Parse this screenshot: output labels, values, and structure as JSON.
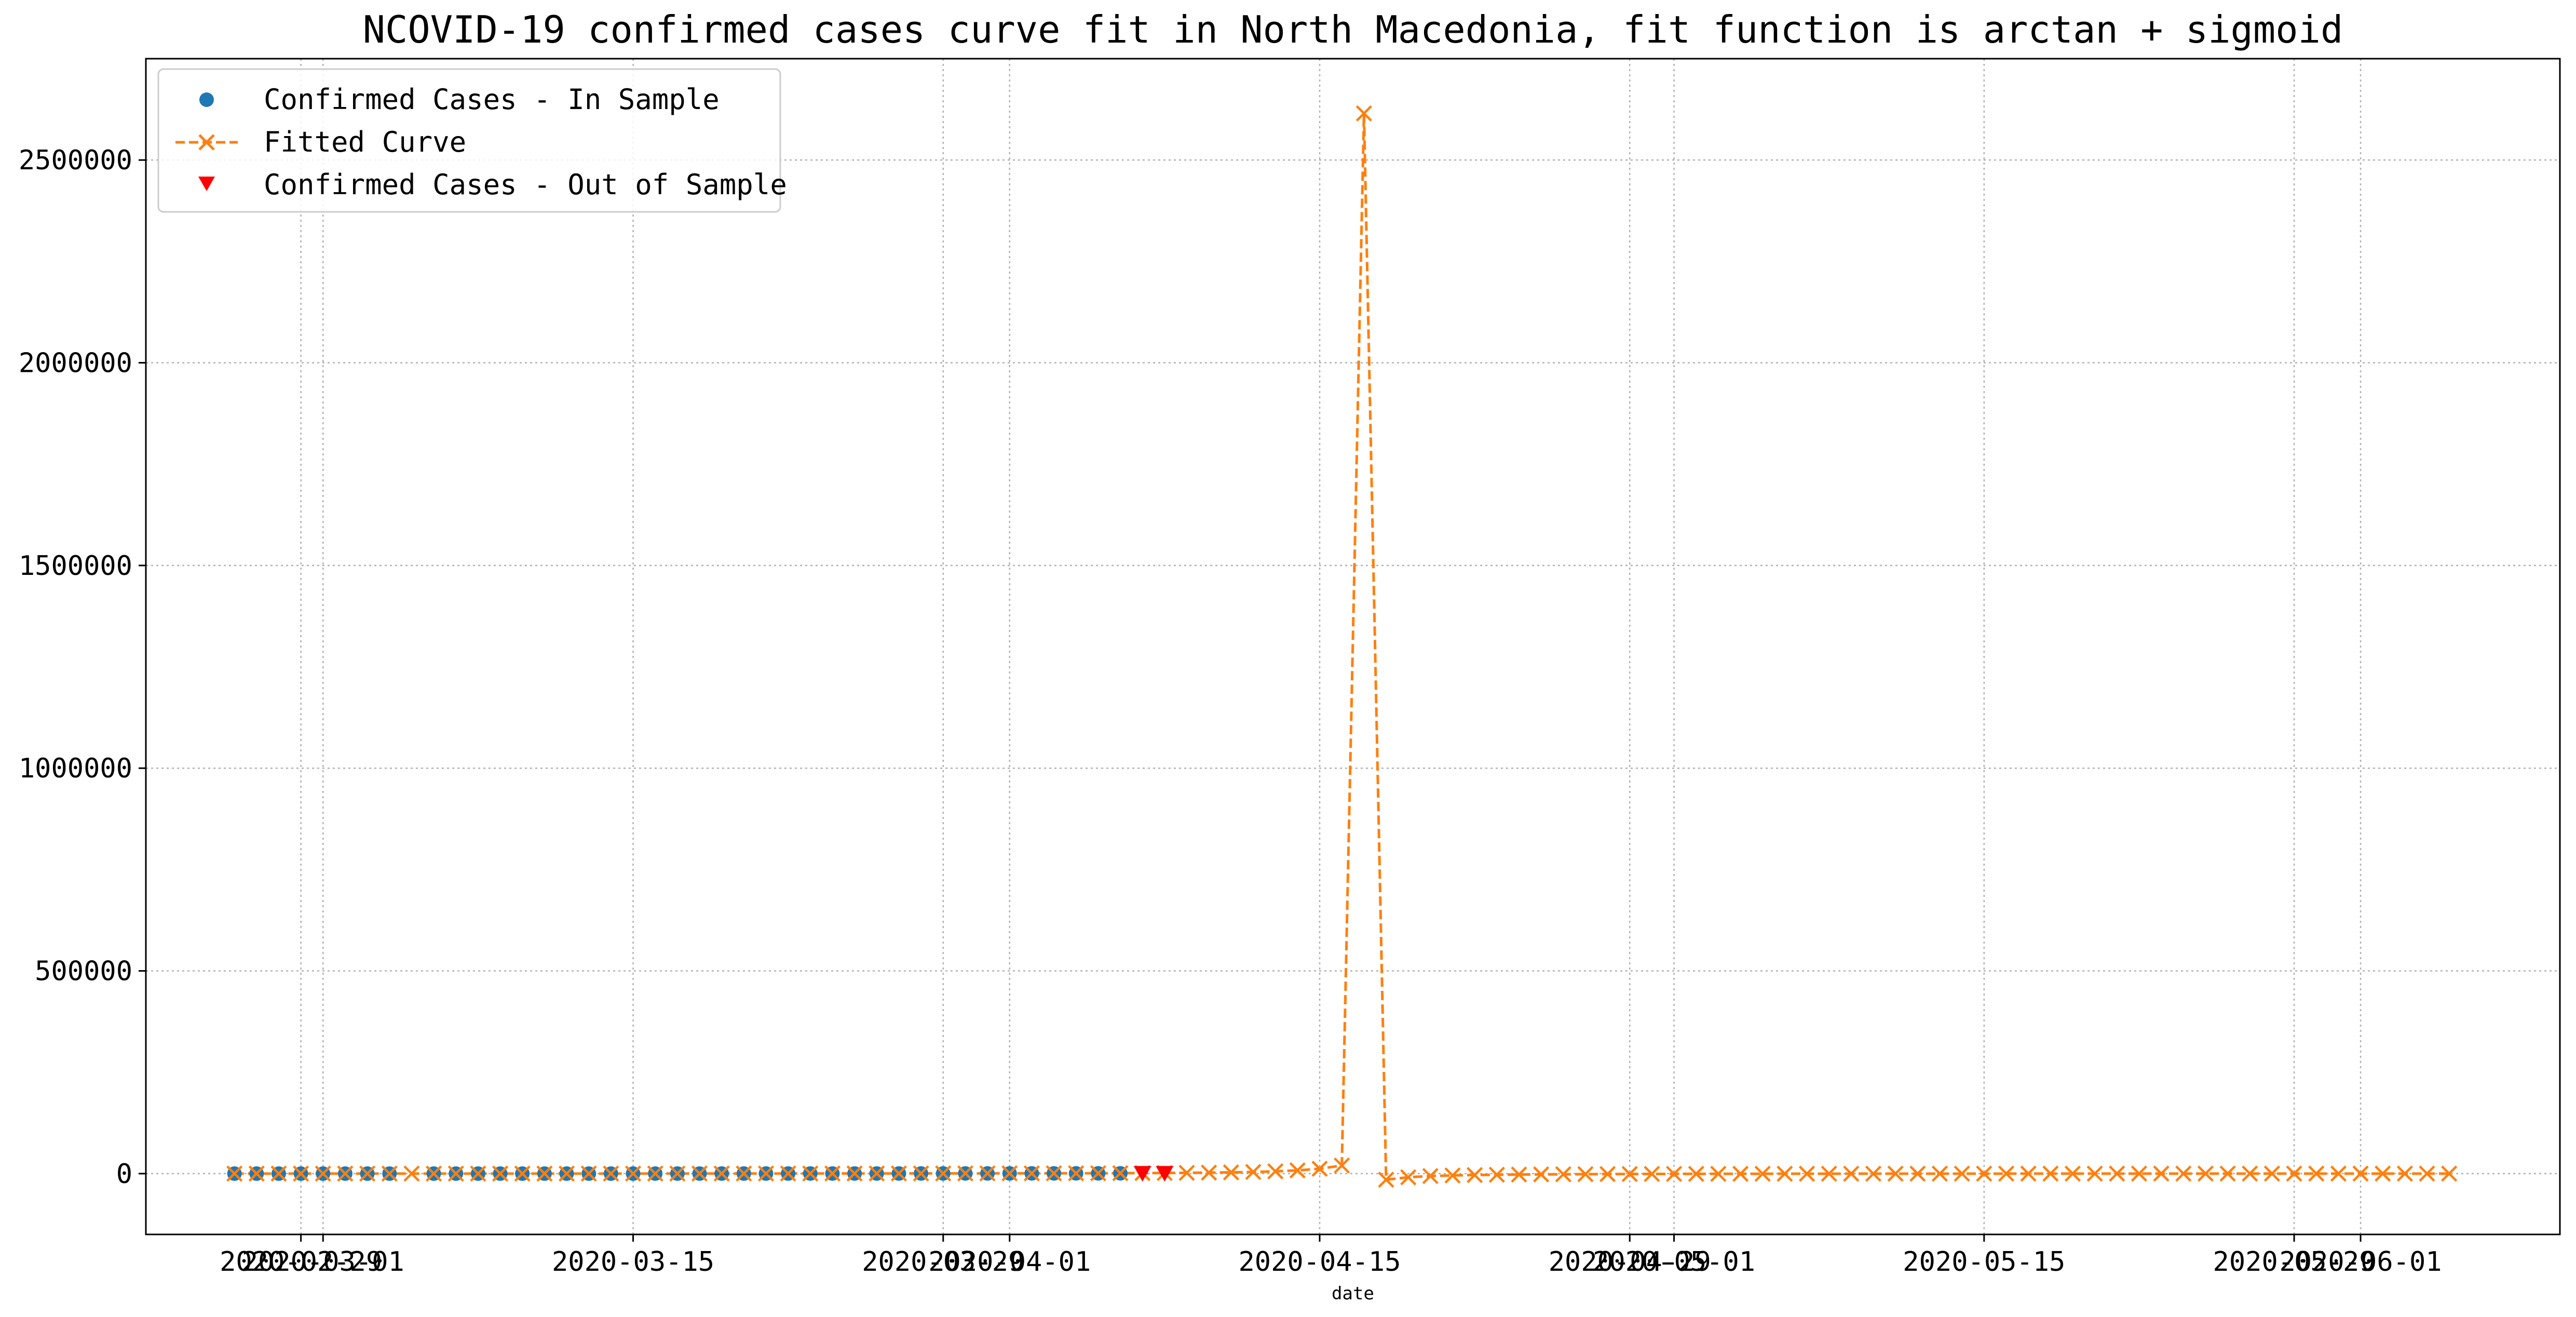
{
  "chart_data": {
    "type": "line",
    "title": "NCOVID-19 confirmed cases curve fit in North Macedonia, fit function is arctan + sigmoid",
    "xlabel": "date",
    "ylabel": "",
    "xlim": [
      "2020-02-22",
      "2020-06-10"
    ],
    "ylim": [
      -150000,
      2750000
    ],
    "grid": true,
    "legend_position": "top-left",
    "x_ticks": [
      "2020-02-29",
      "2020-03-01",
      "2020-03-15",
      "2020-03-29",
      "2020-04-01",
      "2020-04-15",
      "2020-04-29",
      "2020-05-01",
      "2020-05-15",
      "2020-05-29",
      "2020-06-01"
    ],
    "y_ticks": [
      0,
      500000,
      1000000,
      1500000,
      2000000,
      2500000
    ],
    "y_tick_labels": [
      "0",
      "500000",
      "1000000",
      "1500000",
      "2000000",
      "2500000"
    ],
    "series": [
      {
        "name": "Confirmed Cases - In Sample",
        "style": "markers",
        "marker": "circle",
        "color": "#1f77b4",
        "x": [
          "2020-02-26",
          "2020-02-27",
          "2020-02-28",
          "2020-02-29",
          "2020-03-01",
          "2020-03-02",
          "2020-03-03",
          "2020-03-04",
          "2020-03-06",
          "2020-03-07",
          "2020-03-08",
          "2020-03-09",
          "2020-03-10",
          "2020-03-11",
          "2020-03-12",
          "2020-03-13",
          "2020-03-14",
          "2020-03-15",
          "2020-03-16",
          "2020-03-17",
          "2020-03-18",
          "2020-03-19",
          "2020-03-20",
          "2020-03-21",
          "2020-03-22",
          "2020-03-23",
          "2020-03-24",
          "2020-03-25",
          "2020-03-26",
          "2020-03-27",
          "2020-03-28",
          "2020-03-29",
          "2020-03-30",
          "2020-03-31",
          "2020-04-01",
          "2020-04-02",
          "2020-04-03",
          "2020-04-04",
          "2020-04-05",
          "2020-04-06"
        ],
        "y": [
          1,
          1,
          1,
          1,
          1,
          1,
          1,
          1,
          3,
          3,
          3,
          3,
          7,
          7,
          9,
          14,
          14,
          19,
          31,
          48,
          85,
          114,
          136,
          148,
          177,
          201,
          219,
          241,
          259,
          285,
          329,
          354,
          384,
          430,
          483,
          555,
          570,
          599,
          617,
          711
        ]
      },
      {
        "name": "Fitted Curve",
        "style": "dashed-line-with-x-markers",
        "marker": "x",
        "color": "#ff7f0e",
        "x": [
          "2020-02-26",
          "2020-02-27",
          "2020-02-28",
          "2020-02-29",
          "2020-03-01",
          "2020-03-02",
          "2020-03-03",
          "2020-03-04",
          "2020-03-05",
          "2020-03-06",
          "2020-03-07",
          "2020-03-08",
          "2020-03-09",
          "2020-03-10",
          "2020-03-11",
          "2020-03-12",
          "2020-03-13",
          "2020-03-14",
          "2020-03-15",
          "2020-03-16",
          "2020-03-17",
          "2020-03-18",
          "2020-03-19",
          "2020-03-20",
          "2020-03-21",
          "2020-03-22",
          "2020-03-23",
          "2020-03-24",
          "2020-03-25",
          "2020-03-26",
          "2020-03-27",
          "2020-03-28",
          "2020-03-29",
          "2020-03-30",
          "2020-03-31",
          "2020-04-01",
          "2020-04-02",
          "2020-04-03",
          "2020-04-04",
          "2020-04-05",
          "2020-04-06",
          "2020-04-07",
          "2020-04-08",
          "2020-04-09",
          "2020-04-10",
          "2020-04-11",
          "2020-04-12",
          "2020-04-13",
          "2020-04-14",
          "2020-04-15",
          "2020-04-16",
          "2020-04-17",
          "2020-04-18",
          "2020-04-19",
          "2020-04-20",
          "2020-04-21",
          "2020-04-22",
          "2020-04-23",
          "2020-04-24",
          "2020-04-25",
          "2020-04-26",
          "2020-04-27",
          "2020-04-28",
          "2020-04-29",
          "2020-04-30",
          "2020-05-01",
          "2020-05-02",
          "2020-05-03",
          "2020-05-04",
          "2020-05-05",
          "2020-05-06",
          "2020-05-07",
          "2020-05-08",
          "2020-05-09",
          "2020-05-10",
          "2020-05-11",
          "2020-05-12",
          "2020-05-13",
          "2020-05-14",
          "2020-05-15",
          "2020-05-16",
          "2020-05-17",
          "2020-05-18",
          "2020-05-19",
          "2020-05-20",
          "2020-05-21",
          "2020-05-22",
          "2020-05-23",
          "2020-05-24",
          "2020-05-25",
          "2020-05-26",
          "2020-05-27",
          "2020-05-28",
          "2020-05-29",
          "2020-05-30",
          "2020-05-31",
          "2020-06-01",
          "2020-06-02",
          "2020-06-03",
          "2020-06-04",
          "2020-06-05"
        ],
        "y": [
          2,
          3,
          4,
          5,
          6,
          8,
          10,
          12,
          15,
          18,
          22,
          27,
          33,
          40,
          48,
          58,
          70,
          84,
          100,
          118,
          140,
          165,
          190,
          215,
          240,
          265,
          295,
          325,
          360,
          395,
          430,
          470,
          510,
          555,
          600,
          650,
          700,
          770,
          850,
          950,
          1100,
          1300,
          1550,
          1900,
          2400,
          3100,
          4100,
          5600,
          8000,
          12000,
          20000,
          2615000,
          -15000,
          -9000,
          -6000,
          -4500,
          -3500,
          -2800,
          -2300,
          -1900,
          -1600,
          -1300,
          -1100,
          -950,
          -800,
          -680,
          -580,
          -500,
          -430,
          -370,
          -320,
          -280,
          -240,
          -210,
          -180,
          -150,
          -130,
          -110,
          -90,
          -70,
          -55,
          -40,
          -28,
          -18,
          -10,
          -3,
          2,
          6,
          10,
          13,
          16,
          18,
          20,
          22,
          24,
          25,
          26,
          27,
          28,
          29,
          30
        ]
      },
      {
        "name": "Confirmed Cases - Out of Sample",
        "style": "markers",
        "marker": "triangle-down",
        "color": "#ff0000",
        "x": [
          "2020-04-07",
          "2020-04-08"
        ],
        "y": [
          765,
          854
        ]
      }
    ]
  }
}
